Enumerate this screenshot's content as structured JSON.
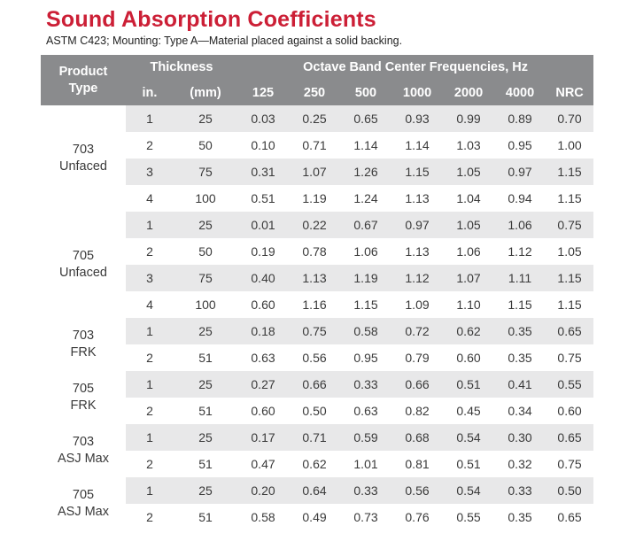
{
  "title": "Sound Absorption Coefficients",
  "subtitle": "ASTM C423; Mounting: Type A—Material placed against a solid backing.",
  "header": {
    "product_type": [
      "Product",
      "Type"
    ],
    "thickness": "Thickness",
    "frequencies_group": "Octave Band Center Frequencies, Hz",
    "columns": [
      "in.",
      "(mm)",
      "125",
      "250",
      "500",
      "1000",
      "2000",
      "4000",
      "NRC"
    ]
  },
  "products": [
    {
      "name": [
        "703",
        "Unfaced"
      ],
      "rows": [
        [
          "1",
          "25",
          "0.03",
          "0.25",
          "0.65",
          "0.93",
          "0.99",
          "0.89",
          "0.70"
        ],
        [
          "2",
          "50",
          "0.10",
          "0.71",
          "1.14",
          "1.14",
          "1.03",
          "0.95",
          "1.00"
        ],
        [
          "3",
          "75",
          "0.31",
          "1.07",
          "1.26",
          "1.15",
          "1.05",
          "0.97",
          "1.15"
        ],
        [
          "4",
          "100",
          "0.51",
          "1.19",
          "1.24",
          "1.13",
          "1.04",
          "0.94",
          "1.15"
        ]
      ]
    },
    {
      "name": [
        "705",
        "Unfaced"
      ],
      "rows": [
        [
          "1",
          "25",
          "0.01",
          "0.22",
          "0.67",
          "0.97",
          "1.05",
          "1.06",
          "0.75"
        ],
        [
          "2",
          "50",
          "0.19",
          "0.78",
          "1.06",
          "1.13",
          "1.06",
          "1.12",
          "1.05"
        ],
        [
          "3",
          "75",
          "0.40",
          "1.13",
          "1.19",
          "1.12",
          "1.07",
          "1.11",
          "1.15"
        ],
        [
          "4",
          "100",
          "0.60",
          "1.16",
          "1.15",
          "1.09",
          "1.10",
          "1.15",
          "1.15"
        ]
      ]
    },
    {
      "name": [
        "703",
        "FRK"
      ],
      "rows": [
        [
          "1",
          "25",
          "0.18",
          "0.75",
          "0.58",
          "0.72",
          "0.62",
          "0.35",
          "0.65"
        ],
        [
          "2",
          "51",
          "0.63",
          "0.56",
          "0.95",
          "0.79",
          "0.60",
          "0.35",
          "0.75"
        ]
      ]
    },
    {
      "name": [
        "705",
        "FRK"
      ],
      "rows": [
        [
          "1",
          "25",
          "0.27",
          "0.66",
          "0.33",
          "0.66",
          "0.51",
          "0.41",
          "0.55"
        ],
        [
          "2",
          "51",
          "0.60",
          "0.50",
          "0.63",
          "0.82",
          "0.45",
          "0.34",
          "0.60"
        ]
      ]
    },
    {
      "name": [
        "703",
        "ASJ Max"
      ],
      "rows": [
        [
          "1",
          "25",
          "0.17",
          "0.71",
          "0.59",
          "0.68",
          "0.54",
          "0.30",
          "0.65"
        ],
        [
          "2",
          "51",
          "0.47",
          "0.62",
          "1.01",
          "0.81",
          "0.51",
          "0.32",
          "0.75"
        ]
      ]
    },
    {
      "name": [
        "705",
        "ASJ Max"
      ],
      "rows": [
        [
          "1",
          "25",
          "0.20",
          "0.64",
          "0.33",
          "0.56",
          "0.54",
          "0.33",
          "0.50"
        ],
        [
          "2",
          "51",
          "0.58",
          "0.49",
          "0.73",
          "0.76",
          "0.55",
          "0.35",
          "0.65"
        ]
      ]
    }
  ]
}
